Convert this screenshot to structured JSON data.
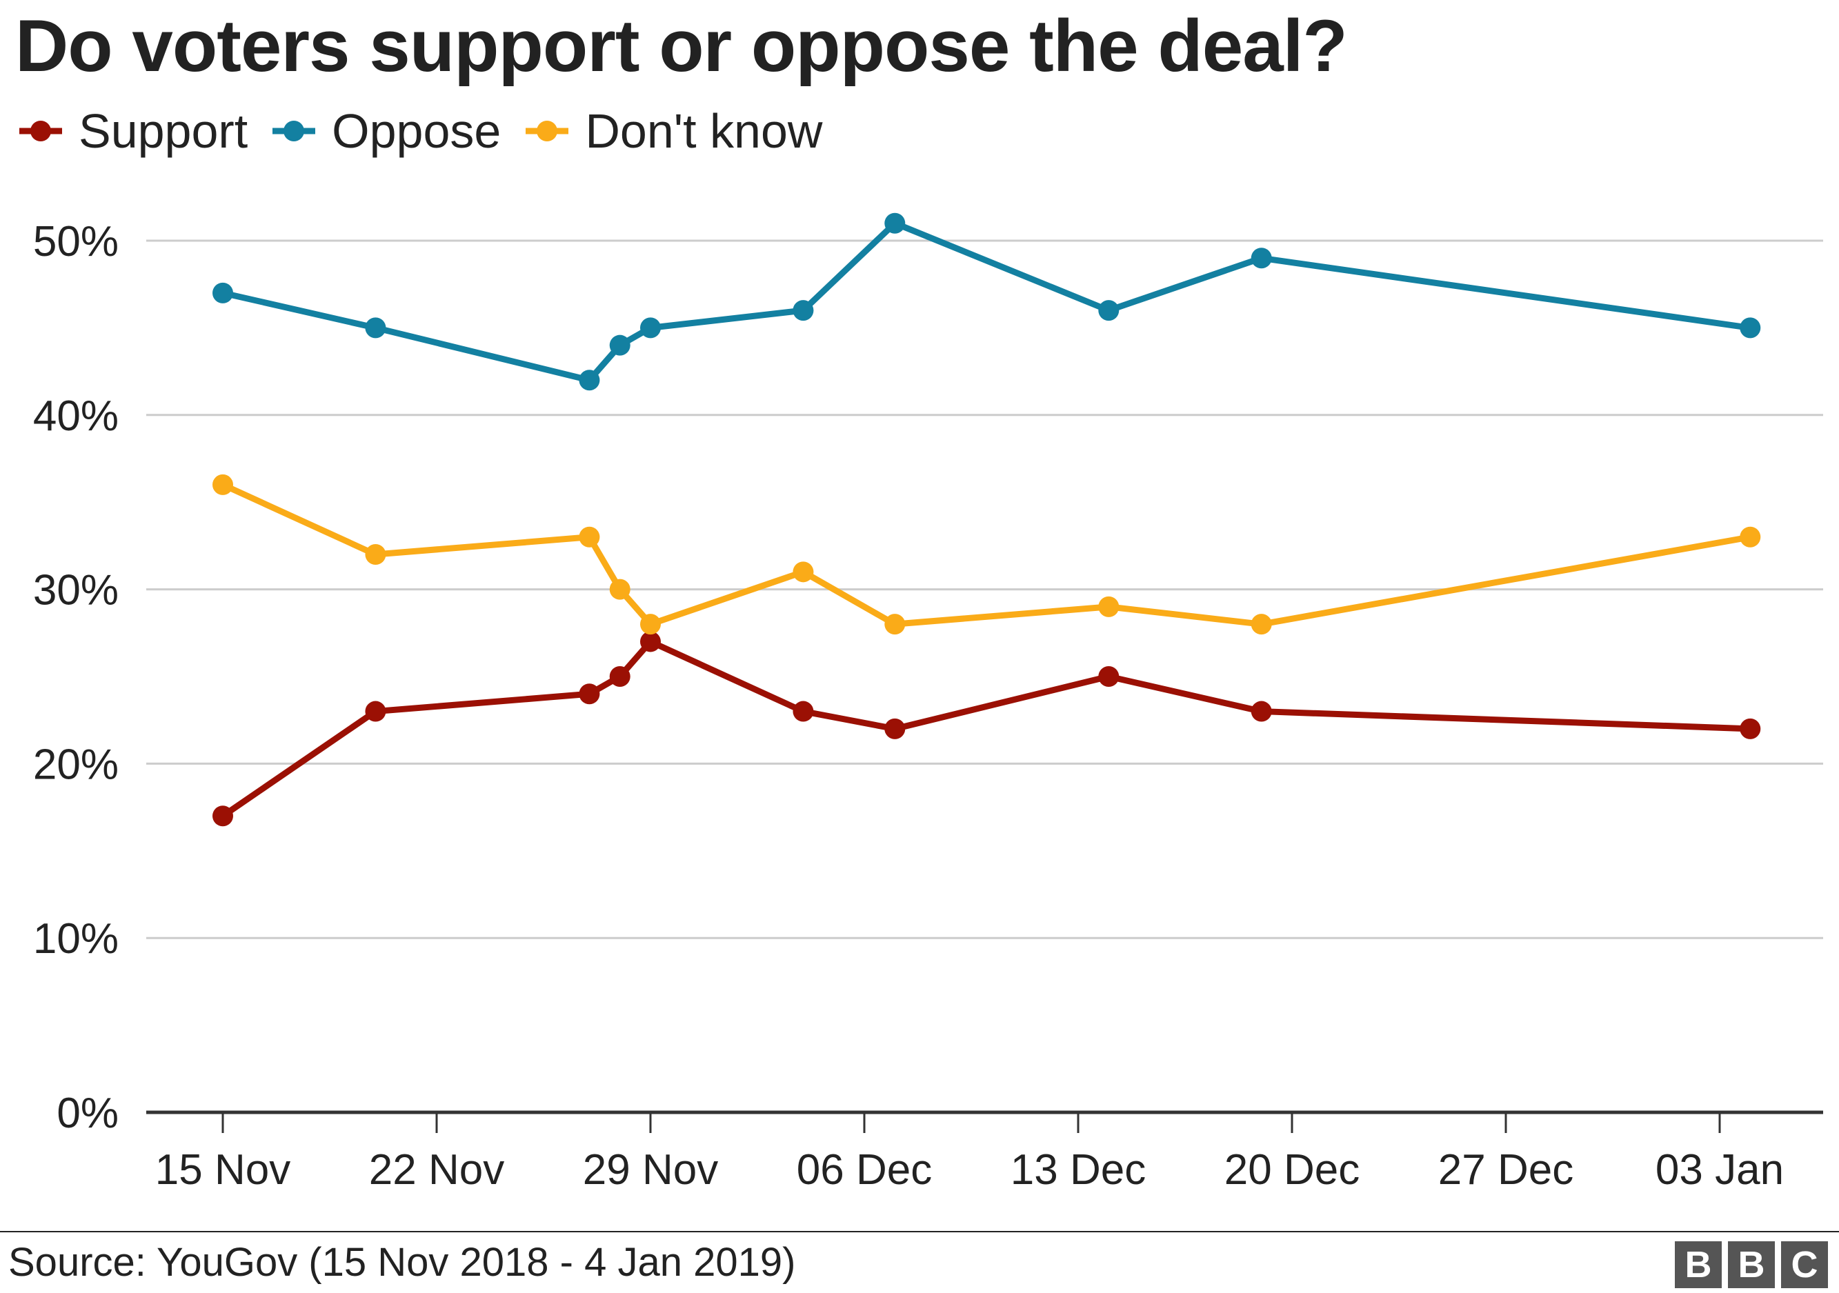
{
  "title": "Do voters support or oppose the deal?",
  "source": "Source: YouGov (15 Nov 2018 - 4 Jan 2019)",
  "logo": [
    "B",
    "B",
    "C"
  ],
  "chart_data": {
    "type": "line",
    "title": "Do voters support or oppose the deal?",
    "xlabel": "",
    "ylabel": "",
    "ylim": [
      0,
      50
    ],
    "yticks": [
      0,
      10,
      20,
      30,
      40,
      50
    ],
    "ytick_labels": [
      "0%",
      "10%",
      "20%",
      "30%",
      "40%",
      "50%"
    ],
    "xlim": [
      "2018-11-13",
      "2019-01-07"
    ],
    "xticks": [
      "2018-11-15",
      "2018-11-22",
      "2018-11-29",
      "2018-12-06",
      "2018-12-13",
      "2018-12-20",
      "2018-12-27",
      "2019-01-03"
    ],
    "xtick_labels": [
      "15 Nov",
      "22 Nov",
      "29 Nov",
      "06 Dec",
      "13 Dec",
      "20 Dec",
      "27 Dec",
      "03 Jan"
    ],
    "grid": true,
    "legend": "top-left",
    "x": [
      "2018-11-15",
      "2018-11-20",
      "2018-11-27",
      "2018-11-28",
      "2018-11-29",
      "2018-12-04",
      "2018-12-07",
      "2018-12-14",
      "2018-12-19",
      "2019-01-04"
    ],
    "series": [
      {
        "name": "Support",
        "color": "#9b1004",
        "values": [
          17,
          23,
          24,
          25,
          27,
          23,
          22,
          25,
          23,
          22
        ]
      },
      {
        "name": "Oppose",
        "color": "#1380a1",
        "values": [
          47,
          45,
          42,
          44,
          45,
          46,
          51,
          46,
          49,
          45
        ]
      },
      {
        "name": "Don't know",
        "color": "#faab18",
        "values": [
          36,
          32,
          33,
          30,
          28,
          31,
          28,
          29,
          28,
          33
        ]
      }
    ]
  }
}
